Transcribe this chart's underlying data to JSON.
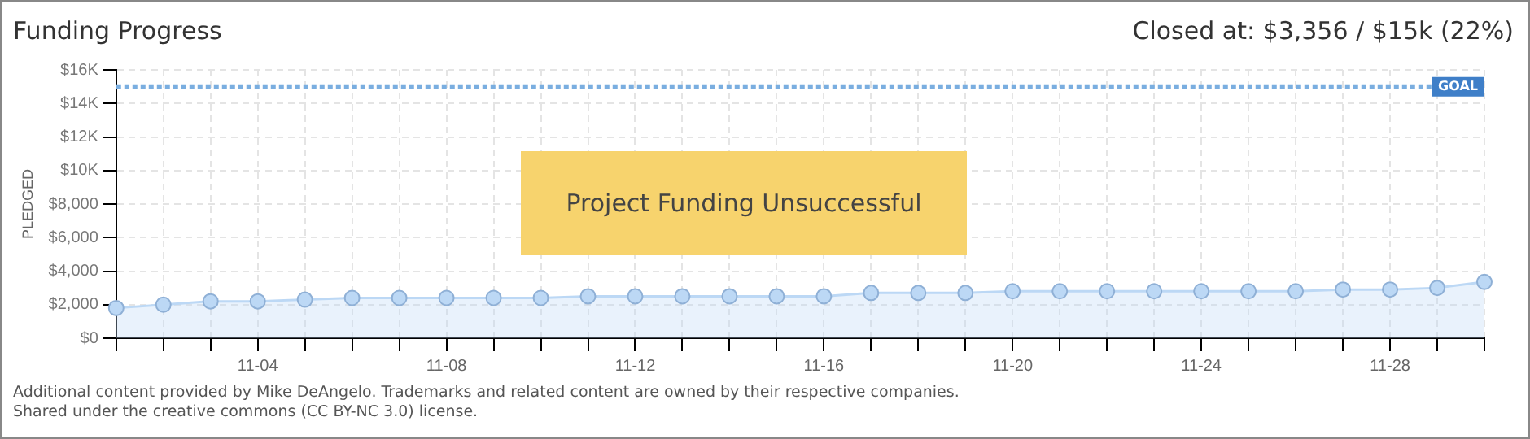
{
  "chart_data": {
    "type": "area",
    "title": "Funding Progress",
    "ylabel": "PLEDGED",
    "annotations": [
      "Closed at: $3,356 / $15k (22%)",
      "Project Funding Unsuccessful",
      "Additional content provided by Mike DeAngelo. Trademarks and related content are owned by their respective companies.",
      "Shared under the creative commons (CC BY-NC 3.0) license."
    ],
    "categories": [
      null,
      null,
      null,
      "11-04",
      null,
      null,
      null,
      "11-08",
      null,
      null,
      null,
      "11-12",
      null,
      null,
      null,
      "11-16",
      null,
      null,
      null,
      "11-20",
      null,
      null,
      null,
      "11-24",
      null,
      null,
      null,
      "11-28",
      null,
      null
    ],
    "series": [
      {
        "color": "#bcd8f5",
        "values": [
          1800,
          2000,
          2200,
          2200,
          2300,
          2400,
          2400,
          2400,
          2400,
          2400,
          2500,
          2500,
          2500,
          2500,
          2500,
          2500,
          2700,
          2700,
          2700,
          2800,
          2800,
          2800,
          2800,
          2800,
          2800,
          2800,
          2900,
          2900,
          3000,
          3356
        ]
      }
    ],
    "ylim": [
      0,
      16000
    ],
    "yticks": [
      {
        "value": 0,
        "label": "$0"
      },
      {
        "value": 2000,
        "label": "$2,000"
      },
      {
        "value": 4000,
        "label": "$4,000"
      },
      {
        "value": 6000,
        "label": "$6,000"
      },
      {
        "value": 8000,
        "label": "$8,000"
      },
      {
        "value": 10000,
        "label": "$10K"
      },
      {
        "value": 12000,
        "label": "$12K"
      },
      {
        "value": 14000,
        "label": "$14K"
      },
      {
        "value": 16000,
        "label": "$16K"
      }
    ],
    "ref_lines": [
      {
        "axis": "y",
        "value": 15000,
        "label": "GOAL",
        "color": "#7aaee0",
        "line_style": "dotted"
      }
    ],
    "grid": true,
    "marker": "circle",
    "legend": false
  }
}
